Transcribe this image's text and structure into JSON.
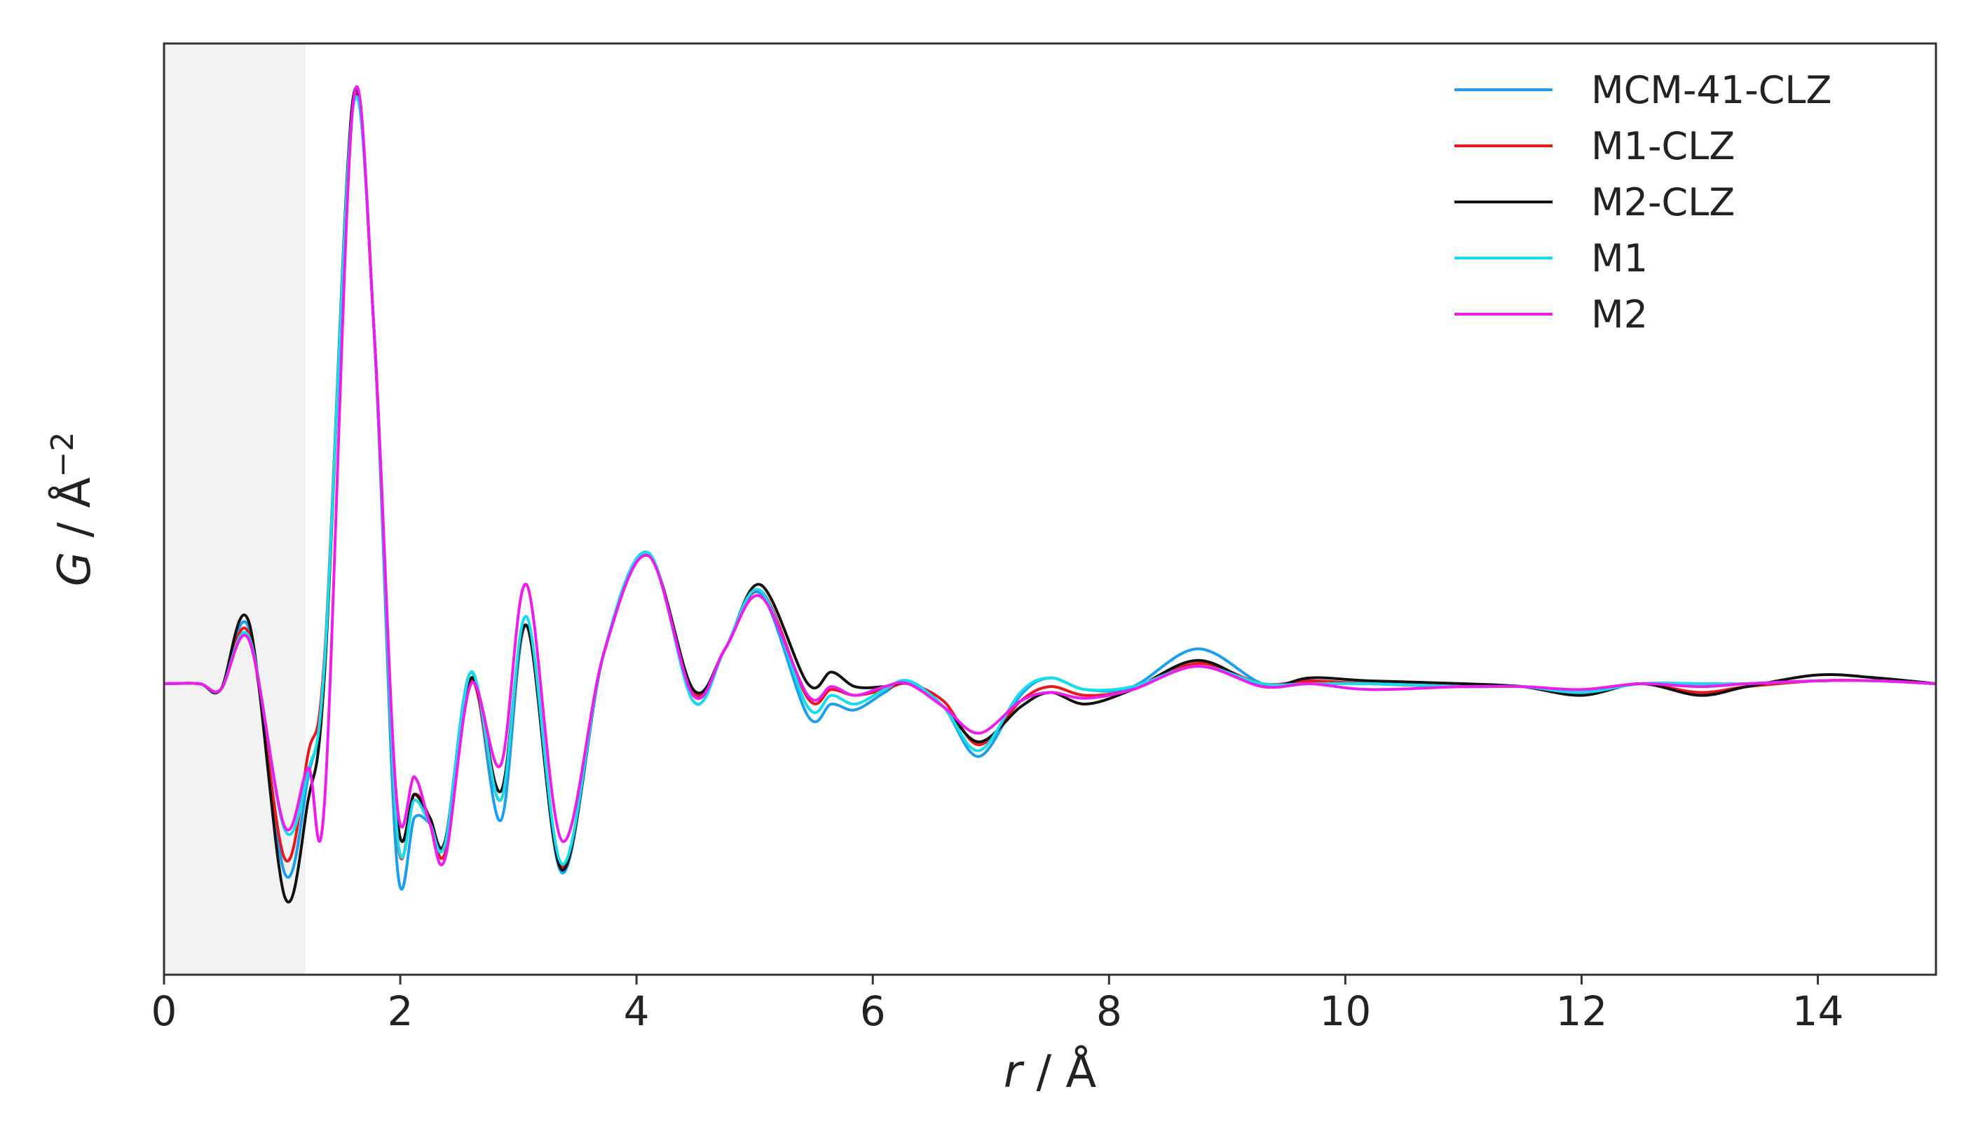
{
  "chart_data": {
    "type": "line",
    "title": "",
    "xlabel_var": "r",
    "xlabel_unit": " / Å",
    "ylabel_var": "G",
    "ylabel_unit": " / Å",
    "ylabel_exp": "−2",
    "xlim": [
      0,
      15
    ],
    "ylim": [
      -0.5,
      1.1
    ],
    "xticks": [
      0,
      2,
      4,
      6,
      8,
      10,
      12,
      14
    ],
    "xtick_labels": [
      "0",
      "2",
      "4",
      "6",
      "8",
      "10",
      "12",
      "14"
    ],
    "yticks_shown": false,
    "grid": false,
    "legend_position": "top-right",
    "shaded_region": {
      "from": 0,
      "to": 1.2,
      "color": "#f2f2f2"
    },
    "series": [
      {
        "name": "MCM-41-CLZ",
        "color": "#1a9ff0",
        "points": [
          [
            0,
            0
          ],
          [
            0.3,
            0
          ],
          [
            0.48,
            -0.01
          ],
          [
            0.72,
            0.095
          ],
          [
            1.02,
            -0.325
          ],
          [
            1.22,
            -0.16
          ],
          [
            1.36,
            0.04
          ],
          [
            1.6,
            1.0
          ],
          [
            1.78,
            0.6
          ],
          [
            1.97,
            -0.305
          ],
          [
            2.12,
            -0.23
          ],
          [
            2.25,
            -0.24
          ],
          [
            2.38,
            -0.27
          ],
          [
            2.6,
            0.02
          ],
          [
            2.85,
            -0.235
          ],
          [
            3.07,
            0.1
          ],
          [
            3.37,
            -0.325
          ],
          [
            3.72,
            0.05
          ],
          [
            4.1,
            0.225
          ],
          [
            4.48,
            -0.03
          ],
          [
            4.75,
            0.06
          ],
          [
            5.05,
            0.155
          ],
          [
            5.45,
            -0.055
          ],
          [
            5.65,
            -0.035
          ],
          [
            5.85,
            -0.045
          ],
          [
            6.1,
            -0.015
          ],
          [
            6.3,
            0.005
          ],
          [
            6.6,
            -0.04
          ],
          [
            6.9,
            -0.125
          ],
          [
            7.25,
            -0.02
          ],
          [
            7.5,
            0.01
          ],
          [
            7.8,
            -0.01
          ],
          [
            8.2,
            -0.005
          ],
          [
            8.75,
            0.06
          ],
          [
            9.3,
            0.0
          ],
          [
            9.7,
            0.0
          ],
          [
            10.2,
            0.0
          ],
          [
            11.0,
            -0.005
          ],
          [
            11.5,
            -0.005
          ],
          [
            12.0,
            -0.015
          ],
          [
            12.5,
            0.0
          ],
          [
            13.0,
            0.0
          ],
          [
            13.4,
            0.0
          ],
          [
            14.0,
            0.005
          ],
          [
            14.5,
            0.005
          ],
          [
            15,
            0.0
          ]
        ]
      },
      {
        "name": "M1-CLZ",
        "color": "#e8171d",
        "points": [
          [
            0,
            0
          ],
          [
            0.3,
            0
          ],
          [
            0.48,
            -0.01
          ],
          [
            0.72,
            0.085
          ],
          [
            1.02,
            -0.3
          ],
          [
            1.22,
            -0.12
          ],
          [
            1.36,
            0.05
          ],
          [
            1.6,
            0.995
          ],
          [
            1.78,
            0.6
          ],
          [
            1.97,
            -0.255
          ],
          [
            2.12,
            -0.19
          ],
          [
            2.25,
            -0.23
          ],
          [
            2.38,
            -0.29
          ],
          [
            2.6,
            0.005
          ],
          [
            2.85,
            -0.2
          ],
          [
            3.07,
            0.1
          ],
          [
            3.37,
            -0.315
          ],
          [
            3.72,
            0.05
          ],
          [
            4.1,
            0.22
          ],
          [
            4.48,
            -0.015
          ],
          [
            4.75,
            0.06
          ],
          [
            5.05,
            0.16
          ],
          [
            5.45,
            -0.025
          ],
          [
            5.65,
            -0.01
          ],
          [
            5.85,
            -0.02
          ],
          [
            6.1,
            -0.01
          ],
          [
            6.3,
            0.0
          ],
          [
            6.6,
            -0.03
          ],
          [
            6.9,
            -0.105
          ],
          [
            7.25,
            -0.03
          ],
          [
            7.5,
            -0.005
          ],
          [
            7.8,
            -0.02
          ],
          [
            8.2,
            -0.01
          ],
          [
            8.75,
            0.035
          ],
          [
            9.3,
            0.0
          ],
          [
            9.7,
            0.005
          ],
          [
            10.2,
            0.0
          ],
          [
            11.0,
            -0.005
          ],
          [
            11.5,
            -0.005
          ],
          [
            12.0,
            -0.015
          ],
          [
            12.5,
            0.0
          ],
          [
            13.0,
            -0.015
          ],
          [
            13.4,
            -0.005
          ],
          [
            14.0,
            0.005
          ],
          [
            14.5,
            0.005
          ],
          [
            15,
            0.0
          ]
        ]
      },
      {
        "name": "M2-CLZ",
        "color": "#111111",
        "points": [
          [
            0,
            0
          ],
          [
            0.3,
            0
          ],
          [
            0.48,
            -0.01
          ],
          [
            0.72,
            0.105
          ],
          [
            1.02,
            -0.365
          ],
          [
            1.22,
            -0.2
          ],
          [
            1.36,
            0.02
          ],
          [
            1.6,
            1.005
          ],
          [
            1.78,
            0.6
          ],
          [
            1.97,
            -0.22
          ],
          [
            2.12,
            -0.19
          ],
          [
            2.25,
            -0.23
          ],
          [
            2.38,
            -0.27
          ],
          [
            2.6,
            0.01
          ],
          [
            2.85,
            -0.185
          ],
          [
            3.07,
            0.1
          ],
          [
            3.37,
            -0.32
          ],
          [
            3.72,
            0.05
          ],
          [
            4.1,
            0.22
          ],
          [
            4.48,
            -0.01
          ],
          [
            4.75,
            0.06
          ],
          [
            5.05,
            0.17
          ],
          [
            5.45,
            0.0
          ],
          [
            5.65,
            0.02
          ],
          [
            5.85,
            -0.005
          ],
          [
            6.1,
            -0.005
          ],
          [
            6.3,
            0.0
          ],
          [
            6.6,
            -0.04
          ],
          [
            6.9,
            -0.1
          ],
          [
            7.25,
            -0.04
          ],
          [
            7.5,
            -0.015
          ],
          [
            7.8,
            -0.035
          ],
          [
            8.2,
            -0.01
          ],
          [
            8.75,
            0.04
          ],
          [
            9.3,
            -0.005
          ],
          [
            9.7,
            0.01
          ],
          [
            10.2,
            0.005
          ],
          [
            11.0,
            0.0
          ],
          [
            11.5,
            -0.005
          ],
          [
            12.0,
            -0.02
          ],
          [
            12.5,
            0.0
          ],
          [
            13.0,
            -0.02
          ],
          [
            13.4,
            -0.005
          ],
          [
            14.0,
            0.015
          ],
          [
            14.5,
            0.01
          ],
          [
            15,
            0.0
          ]
        ]
      },
      {
        "name": "M1",
        "color": "#16dcec",
        "points": [
          [
            0,
            0
          ],
          [
            0.3,
            0
          ],
          [
            0.48,
            -0.01
          ],
          [
            0.72,
            0.08
          ],
          [
            1.02,
            -0.25
          ],
          [
            1.22,
            -0.15
          ],
          [
            1.36,
            0.04
          ],
          [
            1.6,
            0.99
          ],
          [
            1.78,
            0.6
          ],
          [
            1.97,
            -0.25
          ],
          [
            2.12,
            -0.2
          ],
          [
            2.25,
            -0.24
          ],
          [
            2.38,
            -0.275
          ],
          [
            2.6,
            0.02
          ],
          [
            2.85,
            -0.2
          ],
          [
            3.07,
            0.115
          ],
          [
            3.37,
            -0.31
          ],
          [
            3.72,
            0.05
          ],
          [
            4.1,
            0.225
          ],
          [
            4.48,
            -0.03
          ],
          [
            4.75,
            0.06
          ],
          [
            5.05,
            0.16
          ],
          [
            5.45,
            -0.04
          ],
          [
            5.65,
            -0.02
          ],
          [
            5.85,
            -0.035
          ],
          [
            6.1,
            -0.01
          ],
          [
            6.3,
            0.005
          ],
          [
            6.6,
            -0.04
          ],
          [
            6.9,
            -0.115
          ],
          [
            7.25,
            -0.015
          ],
          [
            7.5,
            0.01
          ],
          [
            7.8,
            -0.01
          ],
          [
            8.2,
            -0.005
          ],
          [
            8.75,
            0.03
          ],
          [
            9.3,
            0.0
          ],
          [
            9.7,
            0.0
          ],
          [
            10.2,
            0.0
          ],
          [
            11.0,
            -0.005
          ],
          [
            11.5,
            -0.005
          ],
          [
            12.0,
            -0.015
          ],
          [
            12.5,
            0.0
          ],
          [
            13.0,
            0.0
          ],
          [
            13.4,
            0.0
          ],
          [
            14.0,
            0.005
          ],
          [
            14.5,
            0.005
          ],
          [
            15,
            0.0
          ]
        ]
      },
      {
        "name": "M2",
        "color": "#ee1bee",
        "points": [
          [
            0,
            0
          ],
          [
            0.3,
            0
          ],
          [
            0.48,
            -0.01
          ],
          [
            0.72,
            0.075
          ],
          [
            1.02,
            -0.245
          ],
          [
            1.22,
            -0.145
          ],
          [
            1.36,
            -0.2
          ],
          [
            1.6,
            0.995
          ],
          [
            1.78,
            0.6
          ],
          [
            1.97,
            -0.2
          ],
          [
            2.12,
            -0.16
          ],
          [
            2.25,
            -0.24
          ],
          [
            2.38,
            -0.3
          ],
          [
            2.6,
            0.0
          ],
          [
            2.85,
            -0.14
          ],
          [
            3.07,
            0.17
          ],
          [
            3.37,
            -0.27
          ],
          [
            3.72,
            0.05
          ],
          [
            4.1,
            0.22
          ],
          [
            4.48,
            -0.02
          ],
          [
            4.75,
            0.06
          ],
          [
            5.05,
            0.15
          ],
          [
            5.45,
            -0.02
          ],
          [
            5.65,
            -0.005
          ],
          [
            5.85,
            -0.02
          ],
          [
            6.1,
            -0.005
          ],
          [
            6.3,
            0.0
          ],
          [
            6.6,
            -0.04
          ],
          [
            6.9,
            -0.085
          ],
          [
            7.25,
            -0.03
          ],
          [
            7.5,
            -0.015
          ],
          [
            7.8,
            -0.025
          ],
          [
            8.2,
            -0.01
          ],
          [
            8.75,
            0.03
          ],
          [
            9.3,
            -0.005
          ],
          [
            9.7,
            0.0
          ],
          [
            10.2,
            -0.01
          ],
          [
            11.0,
            -0.005
          ],
          [
            11.5,
            -0.005
          ],
          [
            12.0,
            -0.01
          ],
          [
            12.5,
            0.0
          ],
          [
            13.0,
            -0.005
          ],
          [
            13.4,
            0.0
          ],
          [
            14.0,
            0.005
          ],
          [
            14.5,
            0.005
          ],
          [
            15,
            0.0
          ]
        ]
      }
    ]
  }
}
